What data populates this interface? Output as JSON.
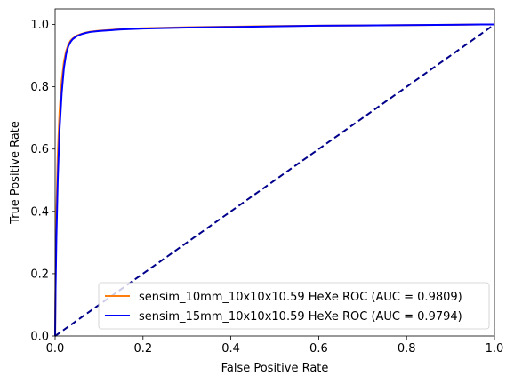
{
  "chart_data": {
    "type": "line",
    "title": "",
    "xlabel": "False Positive Rate",
    "ylabel": "True Positive Rate",
    "xlim": [
      0.0,
      1.0
    ],
    "ylim": [
      0.0,
      1.05
    ],
    "xticks": [
      0.0,
      0.2,
      0.4,
      0.6,
      0.8,
      1.0
    ],
    "xtick_labels": [
      "0.0",
      "0.2",
      "0.4",
      "0.6",
      "0.8",
      "1.0"
    ],
    "yticks": [
      0.0,
      0.2,
      0.4,
      0.6,
      0.8,
      1.0
    ],
    "ytick_labels": [
      "0.0",
      "0.2",
      "0.4",
      "0.6",
      "0.8",
      "1.0"
    ],
    "grid": false,
    "legend_position": "lower-right",
    "series": [
      {
        "name": "sensim_10mm_10x10x10.59 HeXe ROC (AUC = 0.9809)",
        "color": "#ff7f0e",
        "x": [
          0.0,
          0.001,
          0.003,
          0.006,
          0.01,
          0.015,
          0.02,
          0.025,
          0.03,
          0.035,
          0.04,
          0.05,
          0.06,
          0.07,
          0.08,
          0.1,
          0.15,
          0.2,
          0.3,
          0.4,
          0.5,
          0.6,
          0.7,
          0.8,
          0.9,
          0.97,
          1.0
        ],
        "y": [
          0.0,
          0.2,
          0.4,
          0.58,
          0.72,
          0.82,
          0.88,
          0.915,
          0.935,
          0.948,
          0.955,
          0.965,
          0.97,
          0.974,
          0.977,
          0.98,
          0.985,
          0.988,
          0.991,
          0.993,
          0.995,
          0.996,
          0.997,
          0.998,
          0.999,
          1.0,
          1.0
        ]
      },
      {
        "name": "sensim_15mm_10x10x10.59 HeXe ROC (AUC = 0.9794)",
        "color": "#0000ff",
        "x": [
          0.0,
          0.001,
          0.003,
          0.006,
          0.01,
          0.015,
          0.02,
          0.025,
          0.03,
          0.035,
          0.04,
          0.05,
          0.06,
          0.07,
          0.08,
          0.1,
          0.15,
          0.2,
          0.3,
          0.4,
          0.5,
          0.6,
          0.7,
          0.8,
          0.9,
          0.97,
          1.0
        ],
        "y": [
          0.0,
          0.15,
          0.32,
          0.5,
          0.66,
          0.78,
          0.86,
          0.905,
          0.93,
          0.944,
          0.953,
          0.963,
          0.969,
          0.973,
          0.976,
          0.979,
          0.984,
          0.987,
          0.99,
          0.992,
          0.994,
          0.996,
          0.997,
          0.998,
          0.999,
          1.0,
          1.0
        ]
      }
    ],
    "reference_line": {
      "style": "dashed",
      "color": "#00008b",
      "x": [
        0.0,
        1.0
      ],
      "y": [
        0.0,
        1.0
      ]
    }
  }
}
